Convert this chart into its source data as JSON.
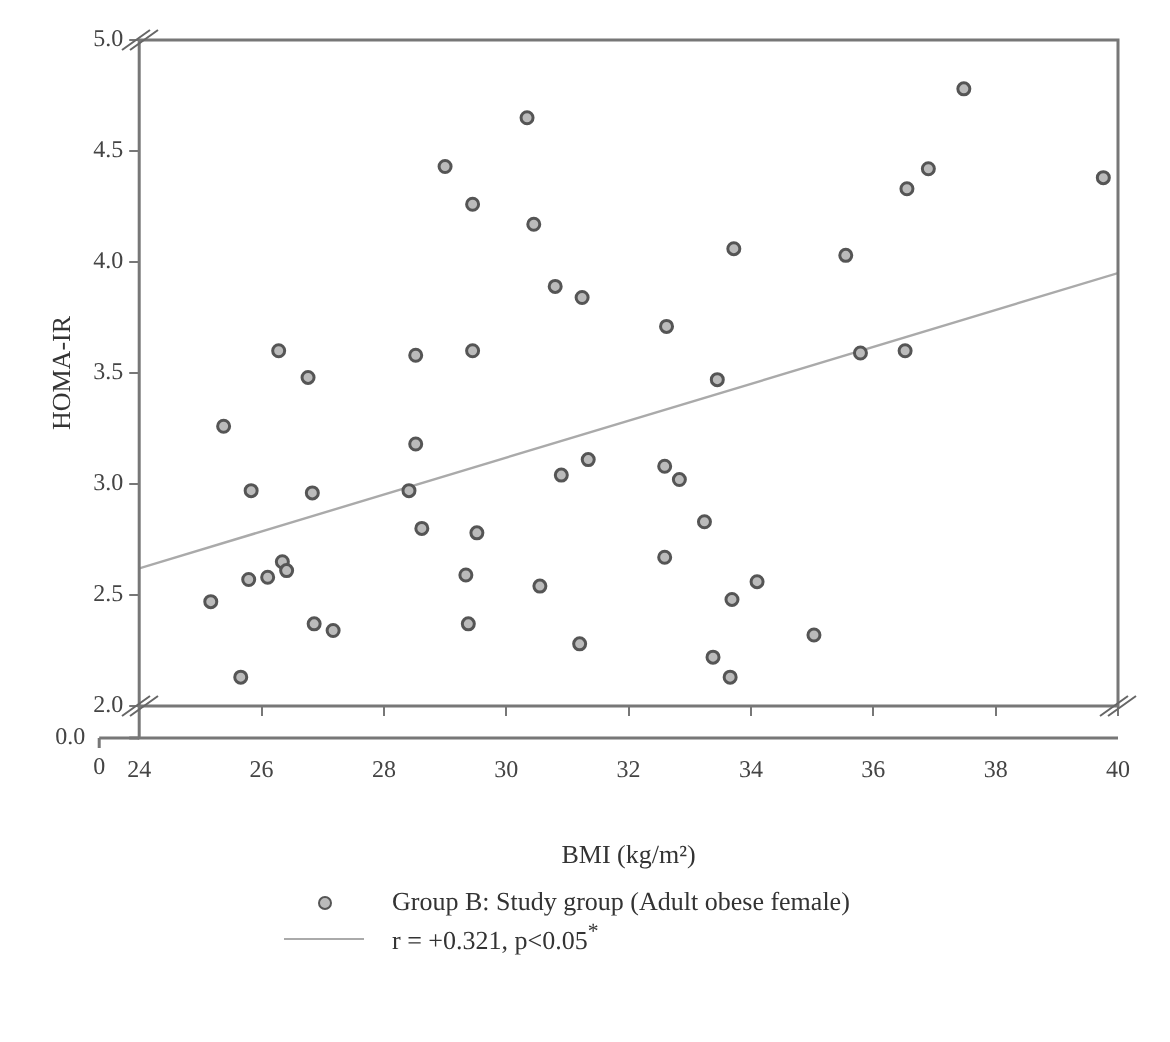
{
  "chart_data": {
    "type": "scatter",
    "xlabel": "BMI (kg/m²)",
    "ylabel": "HOMA-IR",
    "xlim": [
      24,
      40
    ],
    "xticks": [
      24,
      26,
      28,
      30,
      32,
      34,
      36,
      38,
      40
    ],
    "ylim": [
      2.0,
      5.0
    ],
    "yticks": [
      {
        "value": 2.0,
        "label": "2.0"
      },
      2.5,
      {
        "value": 3.0,
        "label": "3.0"
      },
      3.5,
      {
        "value": 4.0,
        "label": "4.0"
      },
      4.5,
      {
        "value": 5.0,
        "label": "5.0"
      }
    ],
    "annotations": [
      "0.0",
      "0"
    ],
    "grid": false,
    "legend": "bottom",
    "marker": "circle",
    "series": [
      {
        "name": "Group B: Study group (Adult obese female)",
        "color": "#555555",
        "x": [
          30.34,
          29.0,
          29.45,
          30.45,
          30.8,
          31.24,
          26.28,
          26.76,
          28.52,
          29.45,
          25.38,
          37.48,
          36.9,
          36.55,
          39.76,
          33.72,
          35.55,
          32.62,
          33.45,
          35.79,
          36.52,
          28.52,
          31.34,
          25.83,
          26.83,
          28.41,
          30.9,
          28.62,
          29.52,
          26.34,
          26.41,
          25.79,
          26.1,
          25.17,
          29.34,
          30.55,
          26.86,
          27.17,
          29.38,
          31.2,
          25.66,
          32.59,
          32.83,
          33.24,
          32.59,
          34.1,
          33.69,
          35.03,
          33.38,
          33.66
        ],
        "values": [
          4.65,
          4.43,
          4.26,
          4.17,
          3.89,
          3.84,
          3.6,
          3.48,
          3.58,
          3.6,
          3.26,
          4.78,
          4.42,
          4.33,
          4.38,
          4.06,
          4.03,
          3.71,
          3.47,
          3.59,
          3.6,
          3.18,
          3.11,
          2.97,
          2.96,
          2.97,
          3.04,
          2.8,
          2.78,
          2.65,
          2.61,
          2.57,
          2.58,
          2.47,
          2.59,
          2.54,
          2.37,
          2.34,
          2.37,
          2.28,
          2.13,
          3.08,
          3.02,
          2.83,
          2.67,
          2.56,
          2.48,
          2.32,
          2.22,
          2.13
        ]
      },
      {
        "name": "r = +0.321, p<0.05$^{*}$",
        "type": "line",
        "color": "#aaaaaa",
        "marker": "none",
        "x": [
          24,
          40
        ],
        "values": [
          2.62,
          3.95
        ]
      }
    ]
  }
}
